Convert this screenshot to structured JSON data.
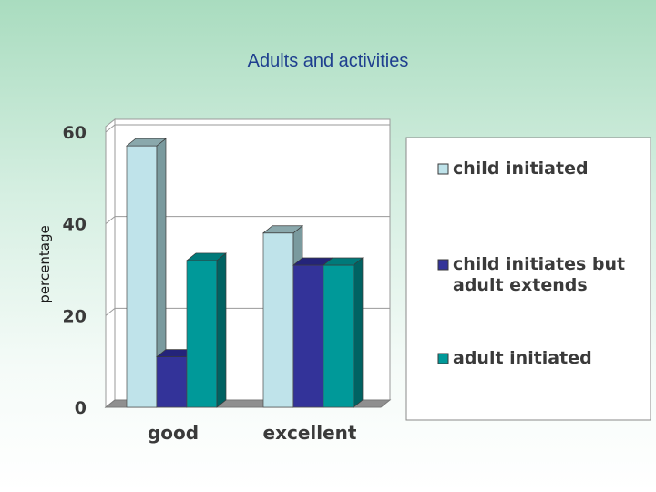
{
  "slide": {
    "title": "Adults  and activities"
  },
  "chart_data": {
    "type": "bar",
    "title": "Adults  and activities",
    "xlabel": "",
    "ylabel": "percentage",
    "ylim": [
      0,
      60
    ],
    "yticks": [
      0,
      20,
      40,
      60
    ],
    "categories": [
      "good",
      "excellent"
    ],
    "series": [
      {
        "name": "child initiated",
        "values": [
          57,
          38
        ],
        "color": "#bfe3ea",
        "side": "#7a9a9e",
        "top": "#8aa8ac"
      },
      {
        "name": "child initiates but adult extends",
        "legend_lines": [
          "child initiates but",
          "adult extends"
        ],
        "values": [
          11,
          31
        ],
        "color": "#333399",
        "side": "#1d1d66",
        "top": "#24247a"
      },
      {
        "name": "adult initiated",
        "values": [
          32,
          31
        ],
        "color": "#009999",
        "side": "#006262",
        "top": "#007a7a"
      }
    ],
    "legend_position": "right",
    "grid": true
  }
}
